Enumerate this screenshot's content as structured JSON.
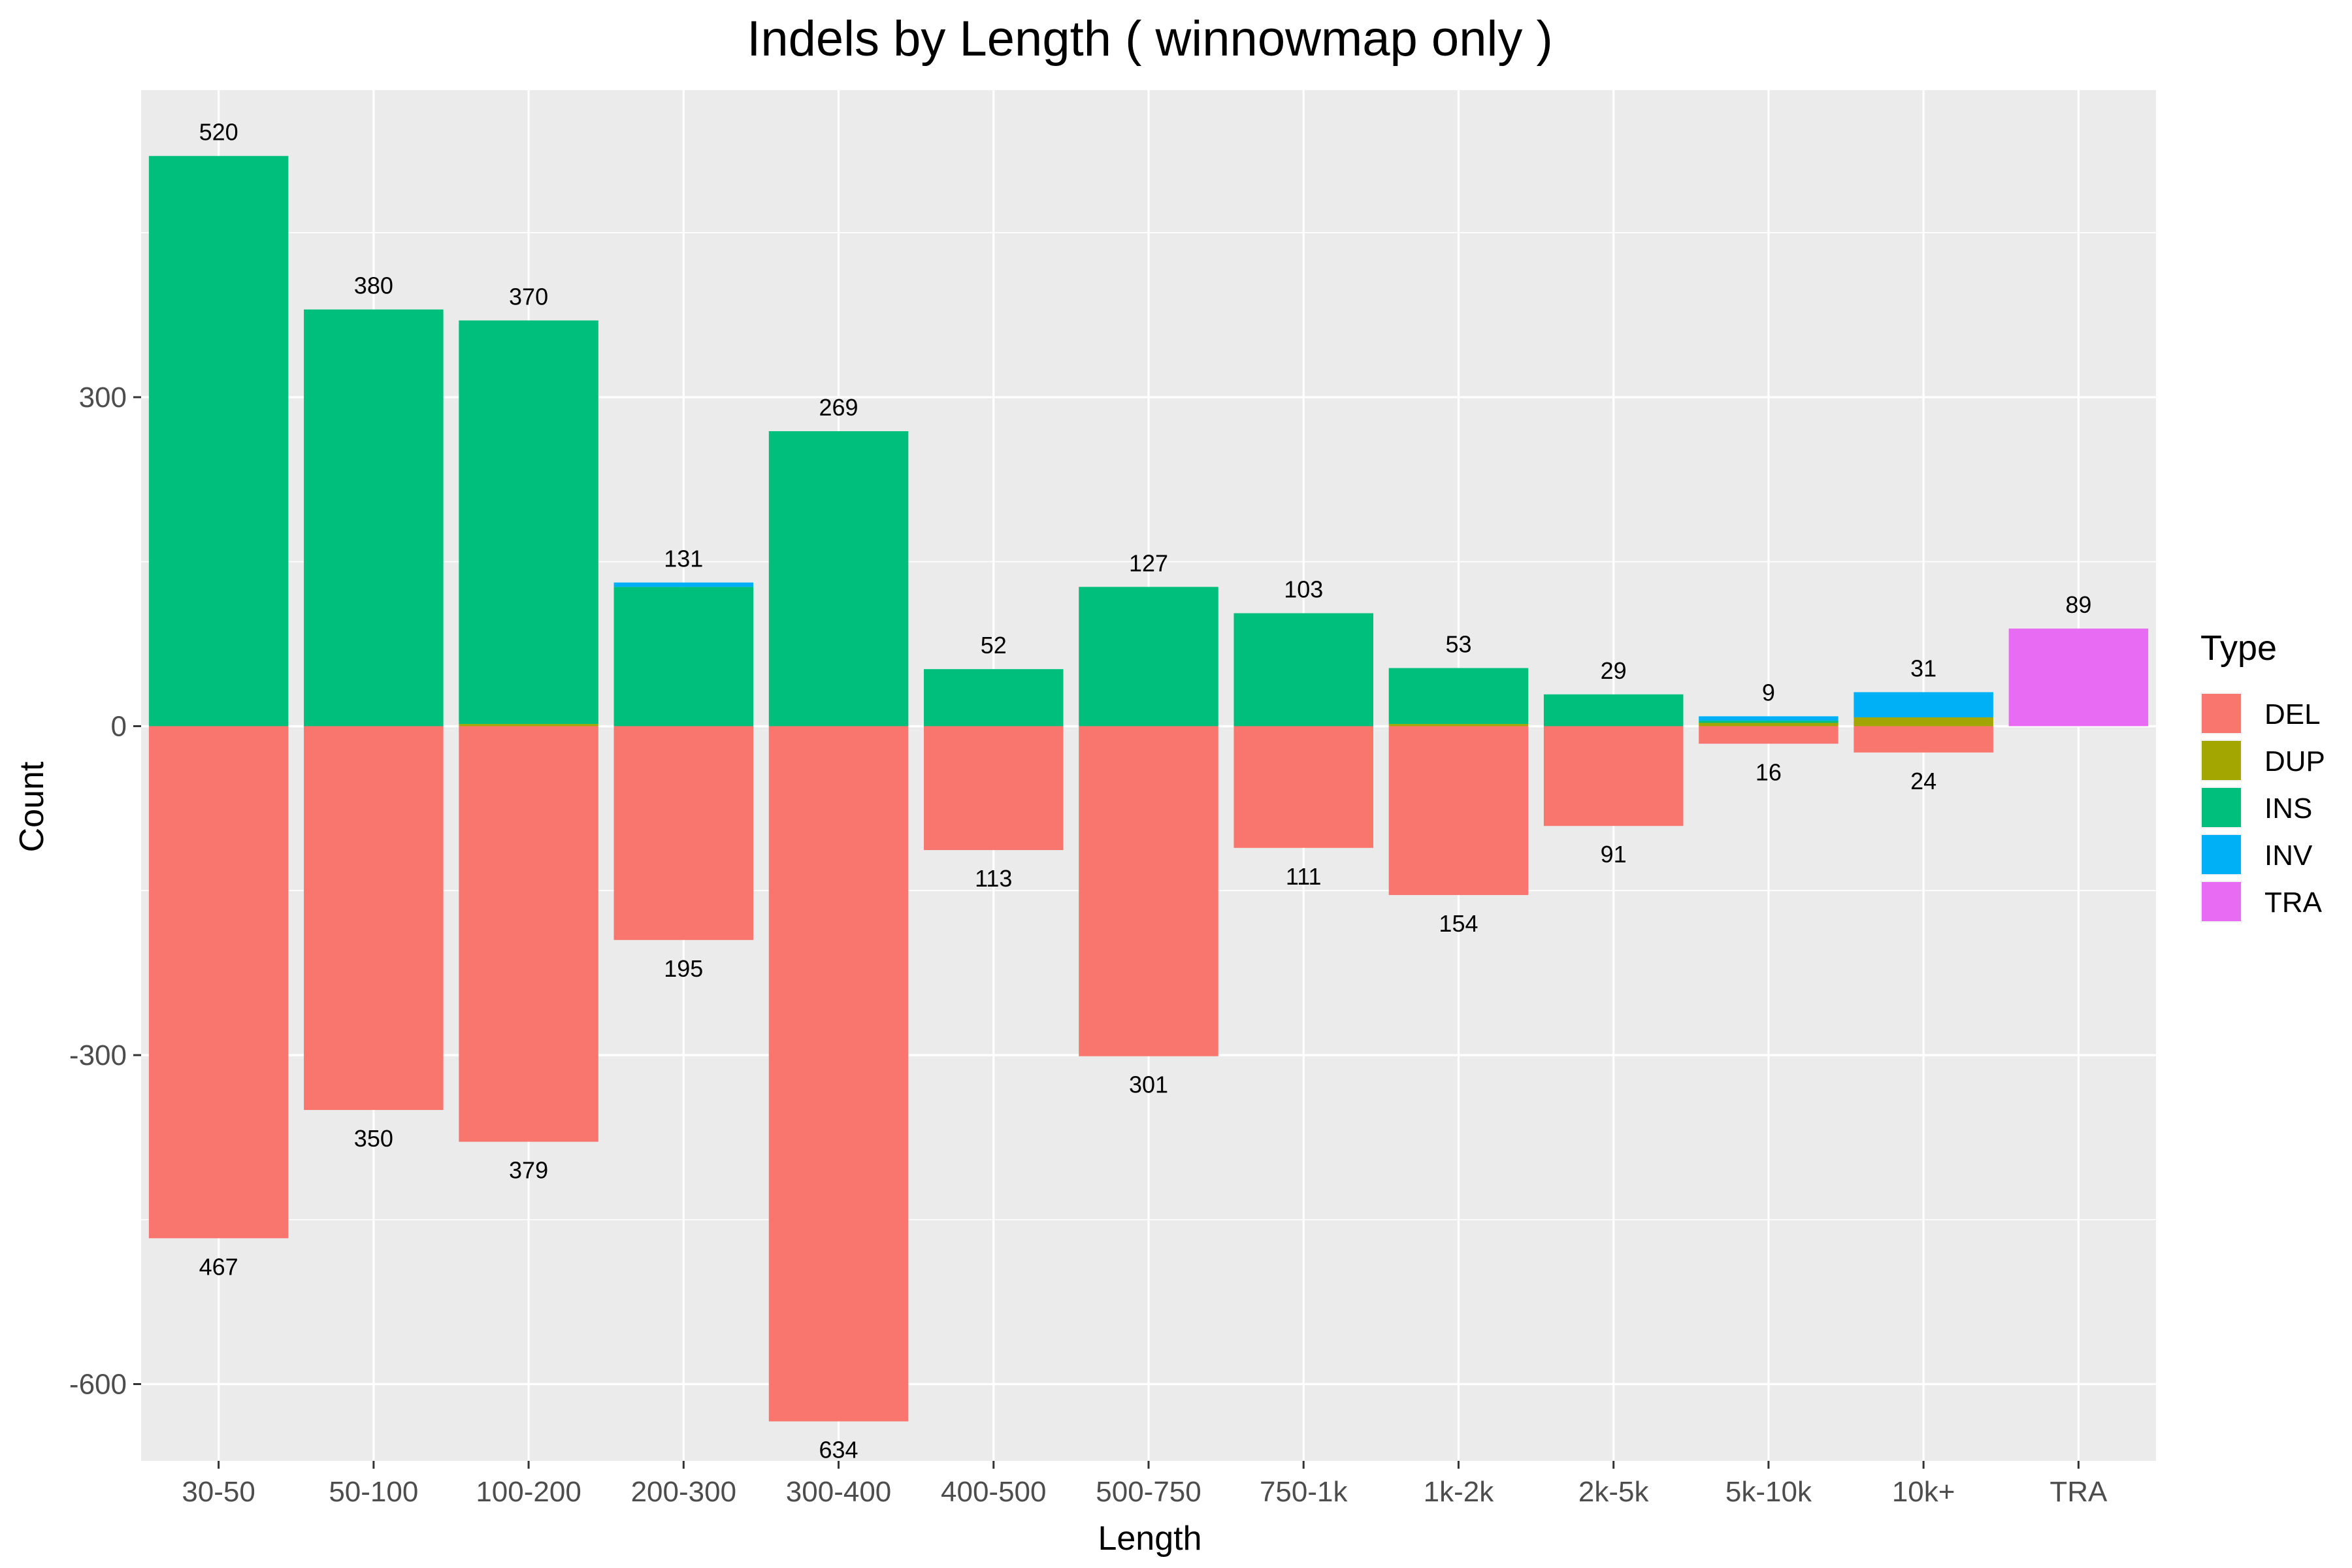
{
  "chart_data": {
    "type": "bar",
    "stacked": true,
    "title": "Indels by Length ( winnowmap only )",
    "xlabel": "Length",
    "ylabel": "Count",
    "categories": [
      "30-50",
      "50-100",
      "100-200",
      "200-300",
      "300-400",
      "400-500",
      "500-750",
      "750-1k",
      "1k-2k",
      "2k-5k",
      "5k-10k",
      "10k+",
      "TRA"
    ],
    "series": [
      {
        "name": "DEL",
        "color": "#F8766D",
        "values": [
          -467,
          -350,
          -379,
          -195,
          -634,
          -113,
          -301,
          -111,
          -154,
          -91,
          -16,
          -24,
          0
        ]
      },
      {
        "name": "DUP",
        "color": "#A3A500",
        "values": [
          0,
          0,
          2,
          0,
          0,
          0,
          0,
          0,
          2,
          0,
          3,
          8,
          0
        ]
      },
      {
        "name": "INS",
        "color": "#00BF7D",
        "values": [
          520,
          380,
          368,
          127,
          269,
          52,
          127,
          103,
          51,
          29,
          2,
          0,
          0
        ]
      },
      {
        "name": "INV",
        "color": "#00B0F6",
        "values": [
          0,
          0,
          0,
          4,
          0,
          0,
          0,
          0,
          0,
          0,
          4,
          23,
          0
        ]
      },
      {
        "name": "TRA",
        "color": "#E76BF3",
        "values": [
          0,
          0,
          0,
          0,
          0,
          0,
          0,
          0,
          0,
          0,
          0,
          0,
          89
        ]
      }
    ],
    "positive_totals": [
      520,
      380,
      370,
      131,
      269,
      52,
      127,
      103,
      53,
      29,
      9,
      31,
      89
    ],
    "negative_totals": [
      467,
      350,
      379,
      195,
      634,
      113,
      301,
      111,
      154,
      91,
      16,
      24,
      null
    ],
    "y_ticks": [
      -600,
      -300,
      0,
      300
    ],
    "ylim": [
      -670,
      580
    ],
    "grid": true,
    "legend": {
      "title": "Type",
      "position": "right",
      "entries": [
        "DEL",
        "DUP",
        "INS",
        "INV",
        "TRA"
      ]
    },
    "colors": {
      "panel_background": "#EBEBEB",
      "grid": "#FFFFFF",
      "axis_text": "#4D4D4D"
    }
  }
}
